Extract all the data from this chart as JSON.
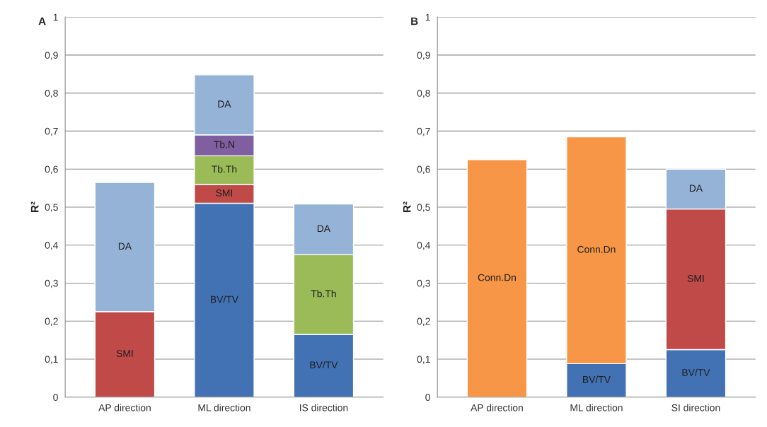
{
  "chart_data": [
    {
      "type": "bar",
      "title": "A",
      "ylabel": "R²",
      "stacked": true,
      "grid": "y",
      "legend": false,
      "categories": [
        "AP direction",
        "ML direction",
        "IS direction"
      ],
      "series": [
        {
          "name": "BV/TV",
          "color": "#4272b4",
          "values": [
            null,
            0.51,
            0.165
          ]
        },
        {
          "name": "SMI",
          "color": "#bf4a48",
          "values": [
            0.225,
            0.05,
            null
          ]
        },
        {
          "name": "Tb.Th",
          "color": "#9bbb59",
          "values": [
            null,
            0.075,
            0.21
          ]
        },
        {
          "name": "Tb.N",
          "color": "#7f5f9f",
          "values": [
            null,
            0.055,
            null
          ]
        },
        {
          "name": "DA",
          "color": "#95b3d7",
          "values": [
            0.34,
            0.158,
            0.133
          ]
        }
      ],
      "ylim": [
        0,
        1
      ],
      "yticks": [
        0,
        {
          "value": 0.1,
          "label": "0,1"
        },
        {
          "value": 0.2,
          "label": "0,2"
        },
        {
          "value": 0.3,
          "label": "0,3"
        },
        {
          "value": 0.4,
          "label": "0,4"
        },
        {
          "value": 0.5,
          "label": "0,5"
        },
        {
          "value": 0.6,
          "label": "0,6"
        },
        {
          "value": 0.7,
          "label": "0,7"
        },
        {
          "value": 0.8,
          "label": "0,8"
        },
        {
          "value": 0.9,
          "label": "0,9"
        },
        1
      ]
    },
    {
      "type": "bar",
      "title": "B",
      "ylabel": "R²",
      "stacked": true,
      "grid": "y",
      "legend": false,
      "categories": [
        "AP direction",
        "ML direction",
        "SI direction"
      ],
      "series": [
        {
          "name": "BV/TV",
          "color": "#4272b4",
          "values": [
            null,
            0.088,
            0.125
          ]
        },
        {
          "name": "SMI",
          "color": "#bf4a48",
          "values": [
            null,
            null,
            0.37
          ]
        },
        {
          "name": "Conn.Dn",
          "color": "#f79646",
          "values": [
            0.625,
            0.597,
            null
          ]
        },
        {
          "name": "DA",
          "color": "#95b3d7",
          "values": [
            null,
            null,
            0.105
          ]
        }
      ],
      "ylim": [
        0,
        1
      ],
      "yticks": [
        0,
        {
          "value": 0.1,
          "label": "0,1"
        },
        {
          "value": 0.2,
          "label": "0,2"
        },
        {
          "value": 0.3,
          "label": "0,3"
        },
        {
          "value": 0.4,
          "label": "0,4"
        },
        {
          "value": 0.5,
          "label": "0,5"
        },
        {
          "value": 0.6,
          "label": "0,6"
        },
        {
          "value": 0.7,
          "label": "0,7"
        },
        {
          "value": 0.8,
          "label": "0,8"
        },
        {
          "value": 0.9,
          "label": "0,9"
        },
        1
      ]
    }
  ]
}
